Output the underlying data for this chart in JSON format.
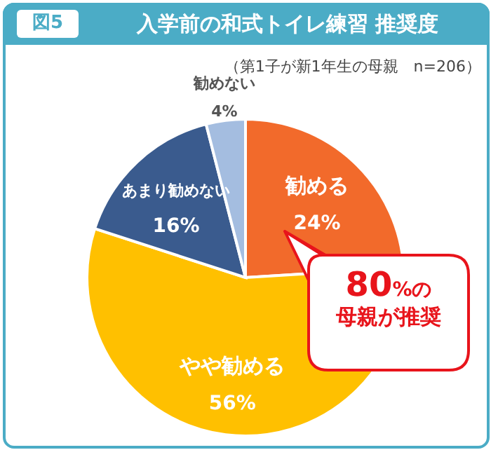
{
  "chart_data": {
    "type": "pie",
    "title": "入学前の和式トイレ練習 推奨度",
    "subtitle": "（第1子が新1年生の母親　n=206）",
    "categories": [
      "勧める",
      "やや勧める",
      "あまり勧めない",
      "勧めない"
    ],
    "values": [
      24,
      56,
      16,
      4
    ],
    "colors": [
      "#f26a2b",
      "#ffc000",
      "#3a5b8e",
      "#a4bde0"
    ],
    "value_labels": [
      "24%",
      "56%",
      "16%",
      "4%"
    ],
    "annotations": [
      "図5",
      "80%の",
      "母親が推奨"
    ]
  }
}
